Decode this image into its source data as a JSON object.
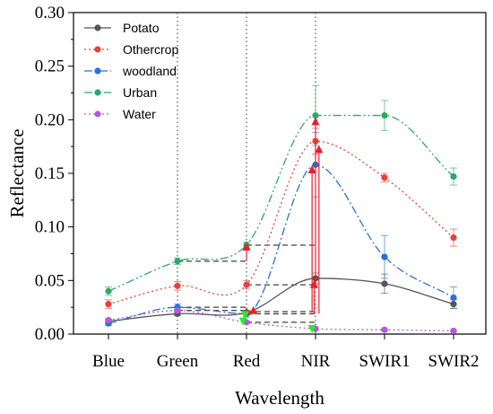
{
  "chart_data": {
    "type": "line",
    "xlabel": "Wavelength",
    "ylabel": "Reflectance",
    "categories": [
      "Blue",
      "Green",
      "Red",
      "NIR",
      "SWIR1",
      "SWIR2"
    ],
    "ylim": [
      0,
      0.3
    ],
    "yticks": [
      0.0,
      0.05,
      0.1,
      0.15,
      0.2,
      0.25,
      0.3
    ],
    "ytick_labels": [
      "0.00",
      "0.05",
      "0.10",
      "0.15",
      "0.20",
      "0.25",
      "0.30"
    ],
    "legend_position": "top-left",
    "grid": false,
    "series": [
      {
        "name": "Potato",
        "color": "#555555",
        "dash": "solid",
        "values": [
          0.012,
          0.019,
          0.02,
          0.052,
          0.047,
          0.028
        ],
        "errors": [
          0.002,
          0.002,
          0.002,
          0.005,
          0.009,
          0.004
        ]
      },
      {
        "name": "Othercrop",
        "color": "#e8413c",
        "dash": "dot",
        "values": [
          0.028,
          0.045,
          0.046,
          0.18,
          0.146,
          0.09
        ],
        "errors": [
          0.004,
          0.004,
          0.004,
          0.012,
          0.004,
          0.008
        ]
      },
      {
        "name": "woodland",
        "color": "#2a6fd6",
        "dash": "dashdot",
        "values": [
          0.01,
          0.025,
          0.019,
          0.158,
          0.072,
          0.034
        ],
        "errors": [
          0.002,
          0.003,
          0.003,
          0.03,
          0.02,
          0.01
        ]
      },
      {
        "name": "Urban",
        "color": "#2ea86a",
        "dash": "dashdotdot",
        "values": [
          0.04,
          0.068,
          0.083,
          0.204,
          0.204,
          0.147
        ],
        "errors": [
          0.004,
          0.003,
          0.003,
          0.028,
          0.014,
          0.008
        ]
      },
      {
        "name": "Water",
        "color": "#b15cd6",
        "dash": "dot",
        "values": [
          0.013,
          0.022,
          0.011,
          0.005,
          0.004,
          0.003
        ],
        "errors": [
          0.001,
          0.001,
          0.001,
          0.001,
          0.001,
          0.001
        ]
      }
    ],
    "reference_lines": [
      "Green",
      "Red",
      "NIR"
    ],
    "annotations": {
      "hlines": [
        {
          "from": "Green",
          "to": "Red",
          "y": 0.068
        },
        {
          "from": "Green",
          "to": "Red",
          "y": 0.025
        },
        {
          "from": "Green",
          "to": "Red",
          "y": 0.022
        },
        {
          "from": "Red",
          "to": "NIR",
          "y": 0.083
        },
        {
          "from": "Red",
          "to": "NIR",
          "y": 0.046
        },
        {
          "from": "Red",
          "to": "NIR",
          "y": 0.021
        },
        {
          "from": "Red",
          "to": "NIR",
          "y": 0.019
        },
        {
          "from": "Red",
          "to": "NIR",
          "y": 0.011
        }
      ],
      "up_arrows": [
        {
          "x": 2.0,
          "y_from": 0.068,
          "y_to": 0.083
        },
        {
          "x": 2.95,
          "y_from": 0.021,
          "y_to": 0.155
        },
        {
          "x": 2.98,
          "y_from": 0.019,
          "y_to": 0.048
        },
        {
          "x": 3.0,
          "y_from": 0.046,
          "y_to": 0.2
        },
        {
          "x": 3.05,
          "y_from": 0.019,
          "y_to": 0.174
        }
      ],
      "small_up_arrows": [
        {
          "x": 2.1,
          "y": 0.022
        },
        {
          "x": 2.0,
          "y": 0.021
        }
      ],
      "down_arrows": [
        {
          "x": 1.95,
          "y": 0.012,
          "color": "#22ee22"
        },
        {
          "x": 1.98,
          "y": 0.018,
          "color": "#22ee22"
        },
        {
          "x": 2.95,
          "y": 0.005,
          "color": "#22ee22"
        }
      ]
    }
  }
}
